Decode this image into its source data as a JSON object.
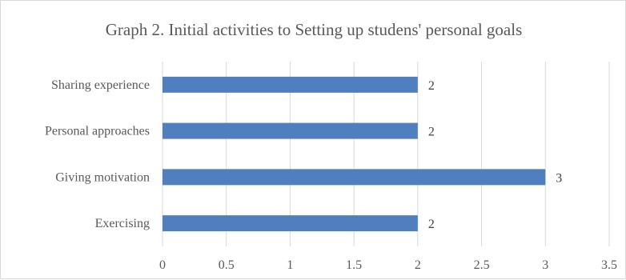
{
  "chart_data": {
    "type": "bar",
    "orientation": "horizontal",
    "title": "Graph 2. Initial activities to Setting up studens' personal goals",
    "categories": [
      "Exercising",
      "Giving motivation",
      "Personal approaches",
      "Sharing experience"
    ],
    "values": [
      2,
      3,
      2,
      2
    ],
    "data_labels": [
      "2",
      "3",
      "2",
      "2"
    ],
    "xlim": [
      0,
      3.5
    ],
    "x_ticks": [
      "0",
      "0.5",
      "1",
      "1.5",
      "2",
      "2.5",
      "3",
      "3.5"
    ],
    "grid": true,
    "legend": "none",
    "bar_color": "#4F7FBF",
    "grid_color": "#D9D9D9"
  }
}
